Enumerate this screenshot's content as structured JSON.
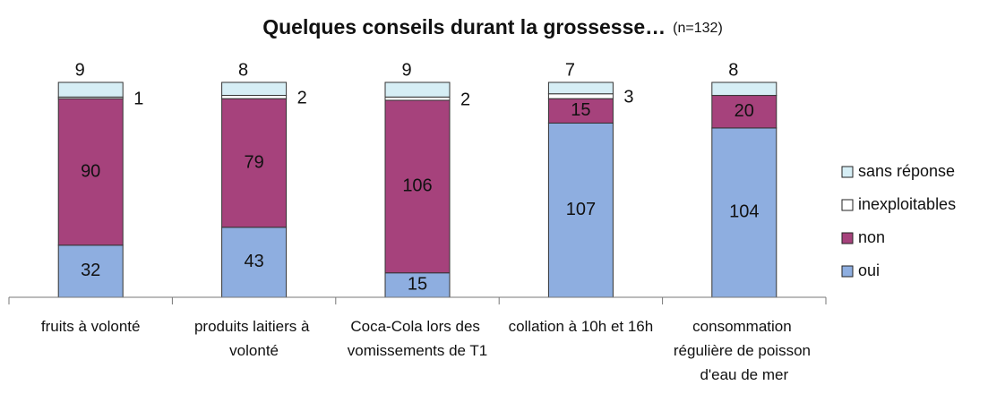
{
  "chart_data": {
    "type": "stacked-bar",
    "title": "Quelques conseils durant la grossesse…",
    "subtitle": "(n=132)",
    "categories": [
      "fruits à volonté",
      "produits laitiers à volonté",
      "Coca-Cola lors des vomissements de T1",
      "collation à 10h et 16h",
      "consommation régulière de poisson d'eau de mer"
    ],
    "series": [
      {
        "name": "oui",
        "color": "#8eaee0",
        "values": [
          32,
          43,
          15,
          107,
          104
        ]
      },
      {
        "name": "non",
        "color": "#a6427c",
        "values": [
          90,
          79,
          106,
          15,
          20
        ]
      },
      {
        "name": "inexploitables",
        "color": "#ffffff",
        "values": [
          1,
          2,
          2,
          3,
          0
        ]
      },
      {
        "name": "sans réponse",
        "color": "#d6eef5",
        "values": [
          9,
          8,
          9,
          7,
          8
        ]
      }
    ],
    "legend": "right"
  }
}
